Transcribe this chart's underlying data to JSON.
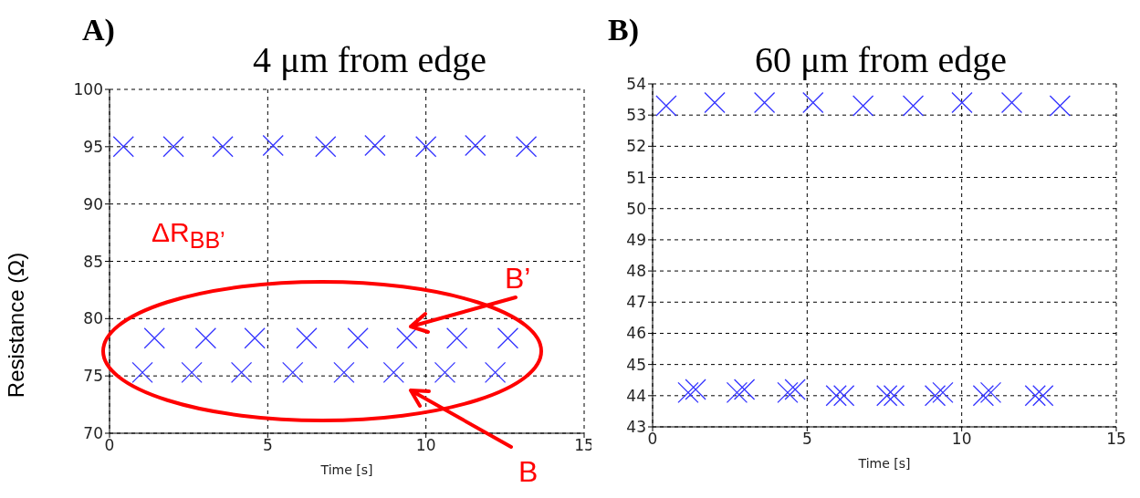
{
  "chart_data": [
    {
      "type": "scatter",
      "title": "4 μm from edge",
      "xlabel": "Time [s]",
      "ylabel": "Resistance (Ω)",
      "xlim": [
        0,
        15
      ],
      "xticks": [
        0,
        5,
        10,
        15
      ],
      "ylim": [
        70,
        100
      ],
      "yticks": [
        70,
        75,
        80,
        85,
        90,
        95,
        100
      ],
      "grid": true,
      "marker": "cross",
      "annotations": [
        "A)",
        "ΔR$_{BB’}$",
        "B’",
        "B"
      ],
      "series": [
        {
          "color": "#3333ff",
          "x": [
            0.44,
            2.02,
            3.58,
            5.17,
            6.83,
            8.39,
            10.0,
            11.56,
            13.17
          ],
          "values": [
            95,
            95,
            95,
            95.1,
            95,
            95.1,
            95,
            95.1,
            95
          ]
        },
        {
          "color": "#3333ff",
          "x": [
            1.42,
            3.04,
            4.59,
            6.23,
            7.85,
            9.4,
            10.98,
            12.59
          ],
          "values": [
            78.3,
            78.3,
            78.3,
            78.3,
            78.3,
            78.3,
            78.3,
            78.3
          ]
        },
        {
          "color": "#3333ff",
          "x": [
            1.04,
            2.6,
            4.17,
            5.79,
            7.41,
            8.98,
            10.6,
            12.19
          ],
          "values": [
            75.3,
            75.3,
            75.3,
            75.3,
            75.3,
            75.3,
            75.3,
            75.3
          ]
        }
      ]
    },
    {
      "type": "scatter",
      "title": "60 μm from edge",
      "xlabel": "Time [s]",
      "xlim": [
        0,
        15
      ],
      "xticks": [
        0,
        5,
        10,
        15
      ],
      "ylim": [
        43,
        54
      ],
      "yticks": [
        43,
        44,
        45,
        46,
        47,
        48,
        49,
        50,
        51,
        52,
        53,
        54
      ],
      "grid": true,
      "marker": "cross",
      "annotations": [
        "B)"
      ],
      "series": [
        {
          "color": "#3333ff",
          "x": [
            0.44,
            2.01,
            3.62,
            5.19,
            6.81,
            8.43,
            10.01,
            11.62,
            13.18
          ],
          "values": [
            53.3,
            53.4,
            53.4,
            53.4,
            53.3,
            53.3,
            53.4,
            53.4,
            53.3
          ]
        },
        {
          "color": "#3333ff",
          "x": [
            1.15,
            2.73,
            4.37,
            5.94,
            7.58,
            9.14,
            10.7,
            12.38
          ],
          "values": [
            44.1,
            44.1,
            44.1,
            44.0,
            44.0,
            44.0,
            44.0,
            44.0
          ]
        },
        {
          "color": "#3333ff",
          "x": [
            1.39,
            2.97,
            4.61,
            6.19,
            7.81,
            9.39,
            10.94,
            12.63
          ],
          "values": [
            44.2,
            44.2,
            44.2,
            44.0,
            44.0,
            44.1,
            44.1,
            44.0
          ]
        }
      ]
    }
  ]
}
